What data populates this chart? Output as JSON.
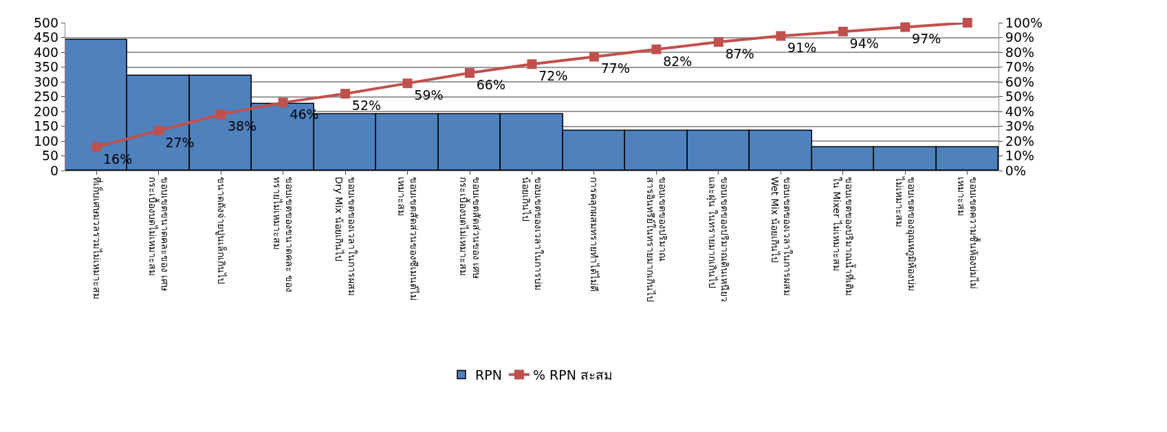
{
  "chart_data": {
    "type": "bar",
    "categories": [
      "ที่เก็บเศษมวลรวมไม่เหมาะสม",
      "ขอบเขตขนาดคละของ เศษ\nกระเบื้องบดไม่เหมาะสม",
      "ขนาดถังจ่ายปูนเล็กเกินไป",
      "ขอบเขตของขนาดคละ ของ\nทรายไม่เหมาะสม",
      "ขอบเขตของเวลาในการผสม\nDry Mix น้อยเกินไป",
      "ขอบเขตสัดส่วนของซีเมนต์ไม่\nเหมาะสม",
      "ขอบเขตสัดส่วนของ เศษ\nกระเบื้องบดไม่เหมาะสม",
      "ขอบเขตของเวลาในการบ่ม\nน้อยเกินไป",
      "การคลุกผสมทรายทำได้ไม่ดี",
      "ขอบเขตของปริมาณ\nสารอินทรีย์ในทรายมากเกินไป",
      "ขอบเขตของปริมาณดินเหนียว\nและฝุ่น ในทรายมากเกินไป",
      "ขอบเขตของเวลาในการผสม\nWet Mix น้อยเกินไป",
      "ขอบเขตของปริมาณน้ำที่เติม\nใน Mixer ไม่เหมาะสม",
      "ขอบเขตของอุณหภูมิห้องบ่ม\nไม่เหมาะสม",
      "ขอบเขตความชื้นห้องบ่มไม่\nเหมาะสม"
    ],
    "series": [
      {
        "name": "RPN",
        "color": "#4f81bd",
        "values": [
          441,
          320,
          320,
          225,
          190,
          190,
          190,
          190,
          135,
          135,
          135,
          135,
          80,
          80,
          80
        ]
      },
      {
        "name": "% RPN สะสม",
        "type": "line",
        "axis": "y2",
        "color": "#c0504d",
        "marker": "square",
        "values": [
          16,
          27,
          38,
          46,
          52,
          59,
          66,
          72,
          77,
          82,
          87,
          91,
          94,
          97,
          100
        ],
        "value_labels": [
          "16%",
          "27%",
          "38%",
          "46%",
          "52%",
          "59%",
          "66%",
          "72%",
          "77%",
          "82%",
          "87%",
          "91%",
          "94%",
          "97%",
          null
        ]
      }
    ],
    "ylim": [
      0,
      500
    ],
    "yticks": [
      0,
      50,
      100,
      150,
      200,
      250,
      300,
      350,
      400,
      450,
      500
    ],
    "y2lim": [
      0,
      100
    ],
    "y2ticks": [
      {
        "value": 0,
        "label": "0%"
      },
      {
        "value": 10,
        "label": "10%"
      },
      {
        "value": 20,
        "label": "20%"
      },
      {
        "value": 30,
        "label": "30%"
      },
      {
        "value": 40,
        "label": "40%"
      },
      {
        "value": 50,
        "label": "50%"
      },
      {
        "value": 60,
        "label": "60%"
      },
      {
        "value": 70,
        "label": "70%"
      },
      {
        "value": 80,
        "label": "80%"
      },
      {
        "value": 90,
        "label": "90%"
      },
      {
        "value": 100,
        "label": "100%"
      }
    ],
    "grid": "y",
    "legend": "bottom"
  }
}
